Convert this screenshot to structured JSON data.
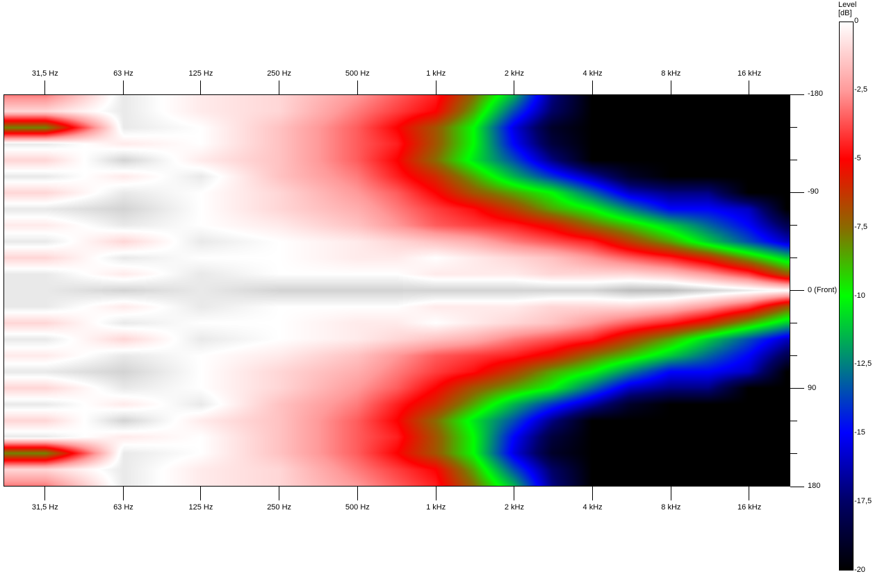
{
  "chart_data": {
    "type": "heatmap",
    "title": "",
    "xlabel": "",
    "ylabel": "",
    "x_scale": "log",
    "xlim": [
      21.8,
      23000
    ],
    "ylim": [
      -180,
      180
    ],
    "x_ticks": [
      {
        "value": 31.5,
        "label": "31,5 Hz"
      },
      {
        "value": 63,
        "label": "63 Hz"
      },
      {
        "value": 125,
        "label": "125 Hz"
      },
      {
        "value": 250,
        "label": "250 Hz"
      },
      {
        "value": 500,
        "label": "500 Hz"
      },
      {
        "value": 1000,
        "label": "1 kHz"
      },
      {
        "value": 2000,
        "label": "2 kHz"
      },
      {
        "value": 4000,
        "label": "4 kHz"
      },
      {
        "value": 8000,
        "label": "8 kHz"
      },
      {
        "value": 16000,
        "label": "16 kHz"
      }
    ],
    "y_ticks": [
      {
        "value": -180,
        "label": "-180"
      },
      {
        "value": -150,
        "label": ""
      },
      {
        "value": -120,
        "label": ""
      },
      {
        "value": -90,
        "label": "-90"
      },
      {
        "value": -60,
        "label": ""
      },
      {
        "value": -30,
        "label": ""
      },
      {
        "value": 0,
        "label": "0 (Front)"
      },
      {
        "value": 30,
        "label": ""
      },
      {
        "value": 60,
        "label": ""
      },
      {
        "value": 90,
        "label": "90"
      },
      {
        "value": 120,
        "label": ""
      },
      {
        "value": 150,
        "label": ""
      },
      {
        "value": 180,
        "label": "180"
      }
    ],
    "colorbar": {
      "title_line1": "Level",
      "title_line2": "[dB]",
      "range": [
        -20,
        0
      ],
      "ticks": [
        {
          "value": 0,
          "label": "0"
        },
        {
          "value": -2.5,
          "label": "-2,5"
        },
        {
          "value": -5,
          "label": "-5"
        },
        {
          "value": -7.5,
          "label": "-7,5"
        },
        {
          "value": -10,
          "label": "-10"
        },
        {
          "value": -12.5,
          "label": "-12,5"
        },
        {
          "value": -15,
          "label": "-15"
        },
        {
          "value": -17.5,
          "label": "-17,5"
        },
        {
          "value": -20,
          "label": "-20"
        }
      ],
      "stops": [
        {
          "value": 2,
          "color": "#a8a8a8"
        },
        {
          "value": 0,
          "color": "#ffffff"
        },
        {
          "value": -2.5,
          "color": "#ff9a9a"
        },
        {
          "value": -5,
          "color": "#ff0000"
        },
        {
          "value": -7.5,
          "color": "#8a6a00"
        },
        {
          "value": -10,
          "color": "#00ff00"
        },
        {
          "value": -12.5,
          "color": "#008080"
        },
        {
          "value": -15,
          "color": "#0000ff"
        },
        {
          "value": -17.5,
          "color": "#000066"
        },
        {
          "value": -20,
          "color": "#000000"
        }
      ]
    },
    "frequencies": [
      31.5,
      63,
      125,
      250,
      500,
      710,
      1000,
      1400,
      2000,
      2800,
      4000,
      5600,
      8000,
      11200,
      16000,
      22400
    ],
    "angles": [
      -180,
      -165,
      -150,
      -135,
      -120,
      -105,
      -90,
      -75,
      -60,
      -45,
      -30,
      -15,
      0,
      15,
      30,
      45,
      60,
      75,
      90,
      105,
      120,
      135,
      150,
      165,
      180
    ],
    "z": [
      [
        -3,
        0.5,
        -0.5,
        -1,
        -2.5,
        -3.5,
        -4.5,
        -7.5,
        -11.5,
        -17,
        -20,
        -20,
        -20,
        -20,
        -20,
        -20
      ],
      [
        -1,
        0.5,
        -0.5,
        -1,
        -3,
        -4,
        -5,
        -8.5,
        -13.5,
        -17.5,
        -20,
        -20,
        -20,
        -20,
        -20,
        -20
      ],
      [
        -8,
        0.5,
        0,
        -1.5,
        -3.5,
        -5,
        -7,
        -10,
        -15.5,
        -19,
        -20,
        -20,
        -20,
        -20,
        -20,
        -20
      ],
      [
        0.5,
        -0.5,
        0,
        -1.5,
        -3.5,
        -4.5,
        -7,
        -10,
        -15,
        -18.5,
        -20,
        -20,
        -20,
        -20,
        -20,
        -20
      ],
      [
        -1,
        1,
        -0.5,
        -1.5,
        -3.5,
        -5,
        -7.5,
        -10.5,
        -13.5,
        -17,
        -20,
        -20,
        -20,
        -20,
        -20,
        -20
      ],
      [
        0.5,
        -0.5,
        0.5,
        -1.5,
        -3,
        -4.5,
        -6,
        -8.5,
        -11.5,
        -14,
        -16.5,
        -19,
        -20,
        -20,
        -20,
        -20
      ],
      [
        -1,
        0.5,
        0,
        -1,
        -2.5,
        -3.5,
        -5,
        -7,
        -8.5,
        -10,
        -13,
        -16,
        -17,
        -17,
        -20,
        -20
      ],
      [
        0.5,
        1,
        0,
        -1,
        -2,
        -3,
        -4,
        -4.8,
        -6.5,
        -8.5,
        -10,
        -12.5,
        -15,
        -15,
        -16,
        -20
      ],
      [
        -0.5,
        0.5,
        0,
        -0.5,
        -1.5,
        -2.5,
        -3.5,
        -4,
        -4.5,
        -5.5,
        -7.5,
        -9,
        -11,
        -13,
        -15,
        -18
      ],
      [
        0.5,
        -1,
        0.5,
        0,
        -0.5,
        -1,
        -1.5,
        -2,
        -3,
        -3.7,
        -4.5,
        -6.5,
        -8.5,
        -11,
        -13.5,
        -16
      ],
      [
        -1,
        0.5,
        0,
        0,
        -0.5,
        -0.5,
        0,
        -0.5,
        -1,
        -1.5,
        -2.5,
        -3.5,
        -4.5,
        -6,
        -8.5,
        -11
      ],
      [
        0.5,
        -0.5,
        0.5,
        0,
        0,
        0,
        -0.5,
        -0.5,
        -0.5,
        -1,
        -1,
        -1,
        -1.5,
        -2.5,
        -4,
        -7
      ],
      [
        0.5,
        1,
        0.5,
        1,
        1,
        1,
        1,
        1,
        1,
        1,
        1,
        1.5,
        1.5,
        1,
        0.5,
        0
      ],
      [
        0.5,
        -0.5,
        0.5,
        0,
        0,
        0,
        -0.5,
        -0.5,
        -0.5,
        -1,
        -1,
        -1,
        -1.5,
        -2.5,
        -4,
        -7
      ],
      [
        -1,
        0.5,
        0,
        0,
        -0.5,
        -0.5,
        0,
        -0.5,
        -1,
        -1.5,
        -2.5,
        -3.5,
        -4.5,
        -6,
        -8.5,
        -11
      ],
      [
        0.5,
        -1,
        0.5,
        0,
        -0.5,
        -1,
        -1.5,
        -2,
        -3,
        -3.7,
        -4.5,
        -6.5,
        -8.5,
        -11,
        -13.5,
        -16
      ],
      [
        -0.5,
        0.5,
        0,
        -0.5,
        -1.5,
        -2.5,
        -3.5,
        -4,
        -4.5,
        -5.5,
        -7.5,
        -9,
        -11,
        -13,
        -15,
        -18
      ],
      [
        0.5,
        1,
        0,
        -1,
        -2,
        -3,
        -4,
        -4.8,
        -6.5,
        -8.5,
        -10,
        -12.5,
        -15,
        -15,
        -16,
        -20
      ],
      [
        -1,
        0.5,
        0,
        -1,
        -2.5,
        -3.5,
        -5,
        -7,
        -8.5,
        -10,
        -13,
        -16,
        -17,
        -17,
        -20,
        -20
      ],
      [
        0.5,
        -0.5,
        0.5,
        -1.5,
        -3,
        -4.5,
        -6,
        -8.5,
        -11.5,
        -14,
        -16.5,
        -19,
        -20,
        -20,
        -20,
        -20
      ],
      [
        -1,
        1,
        -0.5,
        -1.5,
        -3.5,
        -5,
        -7.5,
        -10.5,
        -13.5,
        -17,
        -20,
        -20,
        -20,
        -20,
        -20,
        -20
      ],
      [
        0.5,
        -0.5,
        0,
        -1.5,
        -3.5,
        -4.5,
        -7,
        -10,
        -15,
        -18.5,
        -20,
        -20,
        -20,
        -20,
        -20,
        -20
      ],
      [
        -8,
        0.5,
        0,
        -1.5,
        -3.5,
        -5,
        -7,
        -10,
        -15.5,
        -19,
        -20,
        -20,
        -20,
        -20,
        -20,
        -20
      ],
      [
        -1,
        0.5,
        -0.5,
        -1,
        -3,
        -4,
        -5,
        -8.5,
        -13.5,
        -17.5,
        -20,
        -20,
        -20,
        -20,
        -20,
        -20
      ],
      [
        -3,
        0.5,
        -0.5,
        -1,
        -2.5,
        -3.5,
        -4.5,
        -7.5,
        -11.5,
        -17,
        -20,
        -20,
        -20,
        -20,
        -20,
        -20
      ]
    ]
  }
}
